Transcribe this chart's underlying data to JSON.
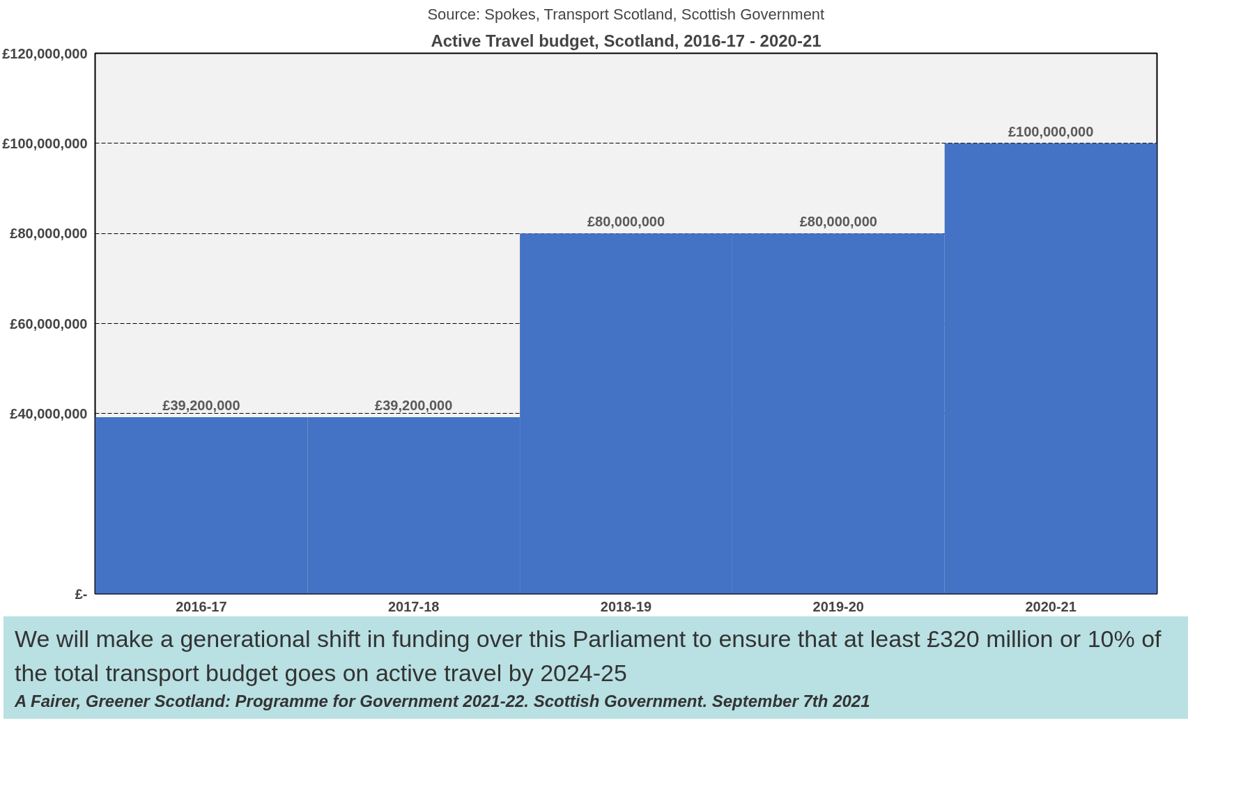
{
  "chart_data": {
    "type": "bar",
    "title": "Active Travel budget, Scotland, 2016-17 - 2020-21",
    "subtitle": "Source: Spokes, Transport Scotland, Scottish Government",
    "categories": [
      "2016-17",
      "2017-18",
      "2018-19",
      "2019-20",
      "2020-21"
    ],
    "values": [
      39200000,
      39200000,
      80000000,
      80000000,
      100000000
    ],
    "value_labels": [
      "£39,200,000",
      "£39,200,000",
      "£80,000,000",
      "£80,000,000",
      "£100,000,000"
    ],
    "color": "#4472c4",
    "ylim": [
      0,
      120000000
    ],
    "yticks": [
      {
        "value": 0,
        "label": "£-"
      },
      {
        "value": 40000000,
        "label": "£40,000,000"
      },
      {
        "value": 60000000,
        "label": "£60,000,000"
      },
      {
        "value": 80000000,
        "label": "£80,000,000"
      },
      {
        "value": 100000000,
        "label": "£100,000,000"
      },
      {
        "value": 120000000,
        "label": "£120,000,000"
      }
    ],
    "grid": "y",
    "line_style": "dashed",
    "annotations": [
      "We will make a generational shift in funding over this Parliament to ensure that at least £320 million or 10% of the total transport budget goes on active travel by 2024-25",
      "A Fairer, Greener Scotland: Programme for Government 2021-22. Scottish Government. September 7th 2021"
    ]
  }
}
